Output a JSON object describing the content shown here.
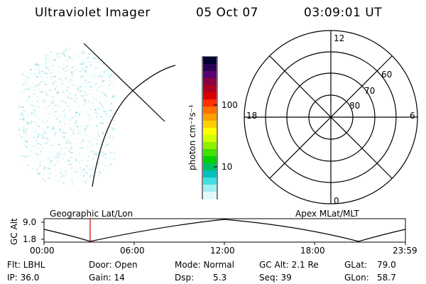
{
  "header": {
    "instrument": "Ultraviolet Imager",
    "date": "05 Oct 07",
    "time": "03:09:01 UT"
  },
  "colorbar": {
    "unit_label": "photon cm⁻²s⁻¹",
    "ticks": [
      "100",
      "10"
    ]
  },
  "polar_plot": {
    "mlt_labels": {
      "top": "12",
      "bottom": "0",
      "left": "18",
      "right": "6"
    },
    "lat_labels": [
      "60",
      "70",
      "80"
    ]
  },
  "timeline": {
    "ylabel": "GC Alt",
    "yticks": [
      "9.0",
      "1.8"
    ],
    "left_title": "Geographic Lat/Lon",
    "right_title": "Apex MLat/MLT",
    "xticks": [
      "00:00",
      "06:00",
      "12:00",
      "18:00",
      "23:59"
    ]
  },
  "footer": {
    "row1": [
      "Flt: LBHL",
      "Door: Open",
      "Mode: Normal",
      "GC Alt: 2.1 Re",
      "GLat:",
      "79.0"
    ],
    "row2": [
      "IP: 36.0",
      "Gain: 14",
      "Dsp:",
      "5.3",
      "Seq: 39",
      "GLon:",
      "58.7"
    ]
  },
  "colors": {
    "emission": "#7fd9d9",
    "marker": "#cc0000"
  }
}
